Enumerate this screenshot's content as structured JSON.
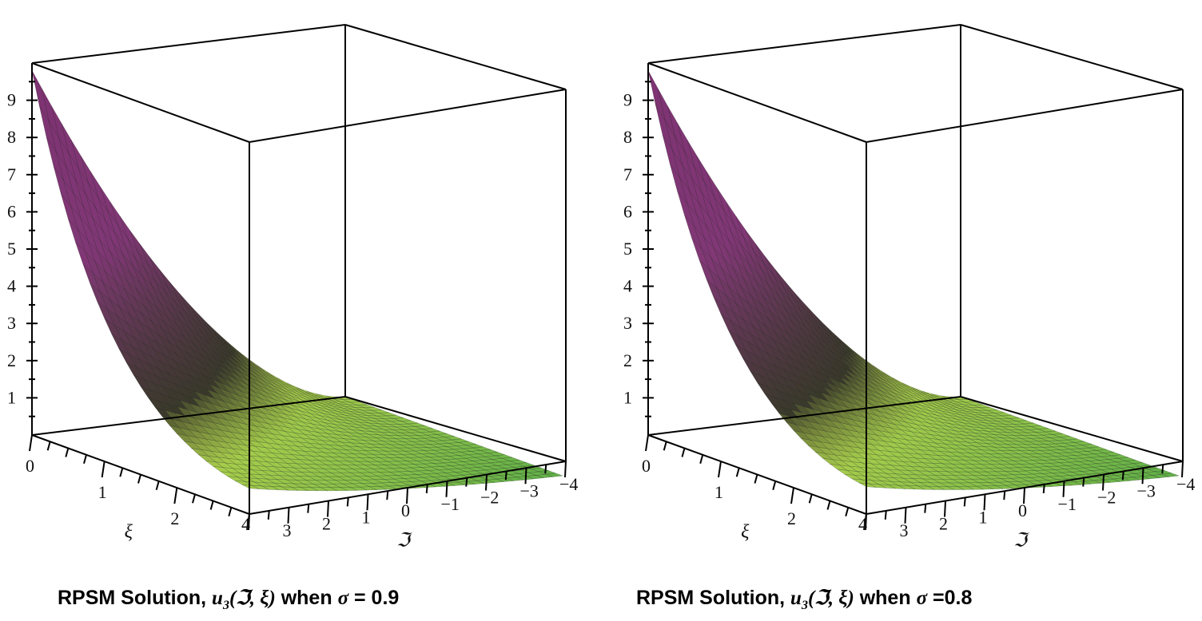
{
  "chart_data": [
    {
      "type": "surface3d",
      "title": "",
      "caption": {
        "prefix": "RPSM Solution, ",
        "func": "u",
        "subscript": "3",
        "args": "(ℑ, ξ)",
        "condition": " when ",
        "param": "σ",
        "equals": " = 0.9"
      },
      "sigma": 0.9,
      "z_axis": {
        "ticks": [
          "1",
          "2",
          "3",
          "4",
          "5",
          "6",
          "7",
          "8",
          "9"
        ],
        "range": [
          0,
          10
        ]
      },
      "xi_axis": {
        "label": "ξ",
        "ticks": [
          "0",
          "1",
          "2"
        ],
        "range": [
          0,
          3
        ]
      },
      "im_axis": {
        "label": "ℑ",
        "ticks": [
          "4",
          "3",
          "2",
          "1",
          "0",
          "−1",
          "−2",
          "−3",
          "−4"
        ],
        "range": [
          4,
          -4
        ]
      },
      "grid_values": {
        "description_axes": [
          "xi",
          "im"
        ],
        "z_at_corner_xi0_im4": 9.8,
        "z_at_far_edge": 0.0
      },
      "colors": {
        "high": "#7a2d6e",
        "mid": "#2a2a1a",
        "low": "#d8e040",
        "far": "#4fa838"
      }
    },
    {
      "type": "surface3d",
      "title": "",
      "caption": {
        "prefix": "RPSM Solution, ",
        "func": "u",
        "subscript": "3",
        "args": "(ℑ, ξ)",
        "condition": " when ",
        "param": "σ",
        "equals": " =0.8"
      },
      "sigma": 0.8,
      "z_axis": {
        "ticks": [
          "1",
          "2",
          "3",
          "4",
          "5",
          "6",
          "7",
          "8",
          "9"
        ],
        "range": [
          0,
          10
        ]
      },
      "xi_axis": {
        "label": "ξ",
        "ticks": [
          "0",
          "1",
          "2"
        ],
        "range": [
          0,
          3
        ]
      },
      "im_axis": {
        "label": "ℑ",
        "ticks": [
          "4",
          "3",
          "2",
          "1",
          "0",
          "−1",
          "−2",
          "−3",
          "−4"
        ],
        "range": [
          4,
          -4
        ]
      },
      "grid_values": {
        "description_axes": [
          "xi",
          "im"
        ],
        "z_at_corner_xi0_im4": 9.8,
        "z_at_far_edge": 0.0
      },
      "colors": {
        "high": "#7a2d6e",
        "mid": "#2a2a1a",
        "low": "#d8e040",
        "far": "#4fa838"
      }
    }
  ]
}
